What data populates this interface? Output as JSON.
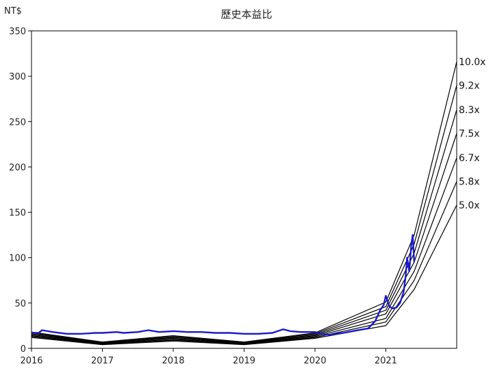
{
  "chart_data": {
    "type": "line",
    "title": "歷史本益比",
    "ylabel": "NT$",
    "xlabel": "",
    "ylim": [
      0,
      350
    ],
    "xlim": [
      2016,
      2022
    ],
    "y_ticks": [
      0,
      50,
      100,
      150,
      200,
      250,
      300,
      350
    ],
    "x_ticks": [
      2016,
      2017,
      2018,
      2019,
      2020,
      2021
    ],
    "grid": false,
    "colors": {
      "price": "#1a1acc",
      "pe_bands": "#000000",
      "axis": "#000000"
    },
    "pe_bands": [
      {
        "name": "5.0x",
        "x": [
          2016,
          2017,
          2018,
          2019,
          2020,
          2021,
          2021.4,
          2022
        ],
        "values": [
          12,
          4,
          8,
          4,
          11,
          25,
          65,
          158
        ]
      },
      {
        "name": "5.8x",
        "x": [
          2016,
          2017,
          2018,
          2019,
          2020,
          2021,
          2021.4,
          2022
        ],
        "values": [
          13,
          4.5,
          9,
          4.5,
          12,
          29,
          75,
          184
        ]
      },
      {
        "name": "6.7x",
        "x": [
          2016,
          2017,
          2018,
          2019,
          2020,
          2021,
          2021.4,
          2022
        ],
        "values": [
          14,
          5,
          10,
          5,
          13,
          33,
          85,
          210
        ]
      },
      {
        "name": "7.5x",
        "x": [
          2016,
          2017,
          2018,
          2019,
          2020,
          2021,
          2021.4,
          2022
        ],
        "values": [
          15,
          5.5,
          11,
          5.5,
          14,
          38,
          95,
          237
        ]
      },
      {
        "name": "8.3x",
        "x": [
          2016,
          2017,
          2018,
          2019,
          2020,
          2021,
          2021.4,
          2022
        ],
        "values": [
          16,
          6,
          12,
          6,
          15,
          42,
          105,
          263
        ]
      },
      {
        "name": "9.2x",
        "x": [
          2016,
          2017,
          2018,
          2019,
          2020,
          2021,
          2021.4,
          2022
        ],
        "values": [
          17,
          6.5,
          13,
          6.5,
          16,
          46,
          115,
          290
        ]
      },
      {
        "name": "10.0x",
        "x": [
          2016,
          2017,
          2018,
          2019,
          2020,
          2021,
          2021.4,
          2022
        ],
        "values": [
          18,
          7,
          14,
          7,
          17,
          51,
          125,
          316
        ]
      }
    ],
    "series": [
      {
        "x": [
          2016.0,
          2016.1,
          2016.15,
          2016.3,
          2016.5,
          2016.7,
          2016.9,
          2017.0,
          2017.2,
          2017.3,
          2017.5,
          2017.65,
          2017.8,
          2018.0,
          2018.2,
          2018.4,
          2018.6,
          2018.8,
          2019.0,
          2019.2,
          2019.4,
          2019.55,
          2019.65,
          2019.8,
          2020.0,
          2020.1,
          2020.2,
          2020.4,
          2020.6,
          2020.75,
          2020.85,
          2020.92,
          2020.97,
          2021.0,
          2021.05,
          2021.1,
          2021.15,
          2021.2,
          2021.25,
          2021.28,
          2021.3,
          2021.33,
          2021.36,
          2021.38,
          2021.4
        ],
        "values": [
          17,
          17,
          20,
          18,
          16,
          16,
          17,
          17,
          18,
          17,
          18,
          20,
          18,
          19,
          18,
          18,
          17,
          17,
          16,
          16,
          17,
          21,
          19,
          18,
          18,
          16,
          15,
          17,
          20,
          22,
          30,
          42,
          48,
          58,
          46,
          44,
          45,
          50,
          62,
          80,
          100,
          85,
          115,
          125,
          95
        ]
      }
    ]
  }
}
